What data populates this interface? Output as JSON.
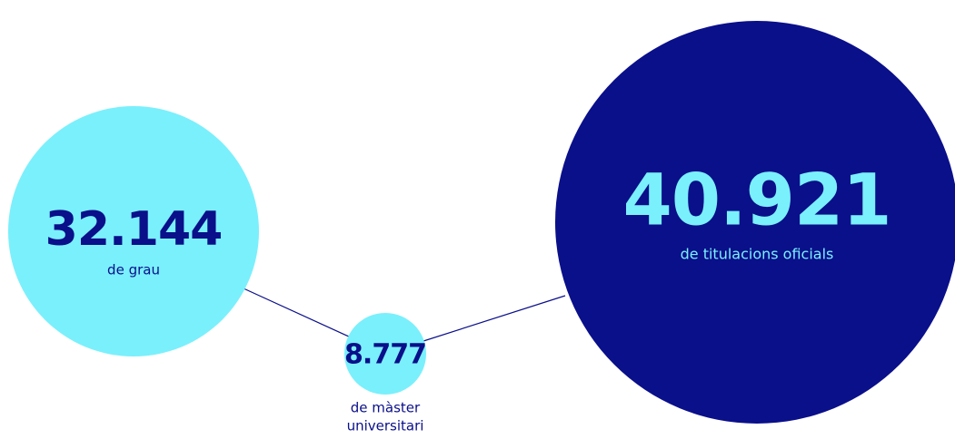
{
  "nodes": [
    {
      "value": "32.144",
      "label": [
        "de grau"
      ]
    },
    {
      "value": "8.777",
      "label": [
        "de màster",
        "universitari"
      ]
    },
    {
      "value": "40.921",
      "label": [
        "de titulacions oficials"
      ]
    }
  ]
}
